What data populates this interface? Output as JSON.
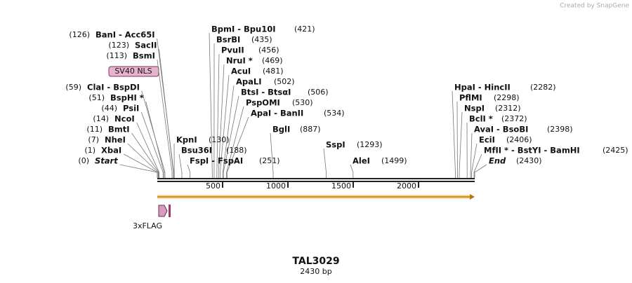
{
  "header": {
    "credit": "Created by SnapGene"
  },
  "map": {
    "title": "TAL3029",
    "subtitle": "2430 bp",
    "ruler_ticks": [
      500,
      1000,
      1500,
      2000
    ],
    "features": [
      {
        "name": "SV40 NLS"
      },
      {
        "name": "3xFLAG"
      }
    ],
    "sites": [
      {
        "name": "BanI  -  Acc65I",
        "position": "(126)"
      },
      {
        "name": "SacII",
        "position": "(123)"
      },
      {
        "name": "BsmI",
        "position": "(113)"
      },
      {
        "name": "ClaI  -  BspDI",
        "position": "(59)"
      },
      {
        "name": "BspHI *",
        "position": "(51)"
      },
      {
        "name": "PsiI",
        "position": "(44)"
      },
      {
        "name": "NcoI",
        "position": "(14)"
      },
      {
        "name": "BmtI",
        "position": "(11)"
      },
      {
        "name": "NheI",
        "position": "(7)"
      },
      {
        "name": "XbaI",
        "position": "(1)"
      },
      {
        "name": "Start",
        "position": "(0)"
      },
      {
        "name": "BpmI  -  Bpu10I",
        "position": "(421)"
      },
      {
        "name": "BsrBI",
        "position": "(435)"
      },
      {
        "name": "PvuII",
        "position": "(456)"
      },
      {
        "name": "NruI *",
        "position": "(469)"
      },
      {
        "name": "AcuI",
        "position": "(481)"
      },
      {
        "name": "ApaLI",
        "position": "(502)"
      },
      {
        "name": "BtsI  -  BtsαI",
        "position": "(506)"
      },
      {
        "name": "PspOMI",
        "position": "(530)"
      },
      {
        "name": "ApaI  -  BanII",
        "position": "(534)"
      },
      {
        "name": "BglI",
        "position": "(887)"
      },
      {
        "name": "SspI",
        "position": "(1293)"
      },
      {
        "name": "AleI",
        "position": "(1499)"
      },
      {
        "name": "KpnI",
        "position": "(130)"
      },
      {
        "name": "Bsu36I",
        "position": "(188)"
      },
      {
        "name": "FspI  -  FspAI",
        "position": "(251)"
      },
      {
        "name": "HpaI  -  HincII",
        "position": "(2282)"
      },
      {
        "name": "PflMI",
        "position": "(2298)"
      },
      {
        "name": "NspI",
        "position": "(2312)"
      },
      {
        "name": "BclI *",
        "position": "(2372)"
      },
      {
        "name": "AvaI  -  BsoBI",
        "position": "(2398)"
      },
      {
        "name": "EciI",
        "position": "(2406)"
      },
      {
        "name": "MfII *  -  BstYI  -  BamHI",
        "position": "(2425)"
      },
      {
        "name": "End",
        "position": "(2430)"
      }
    ]
  }
}
